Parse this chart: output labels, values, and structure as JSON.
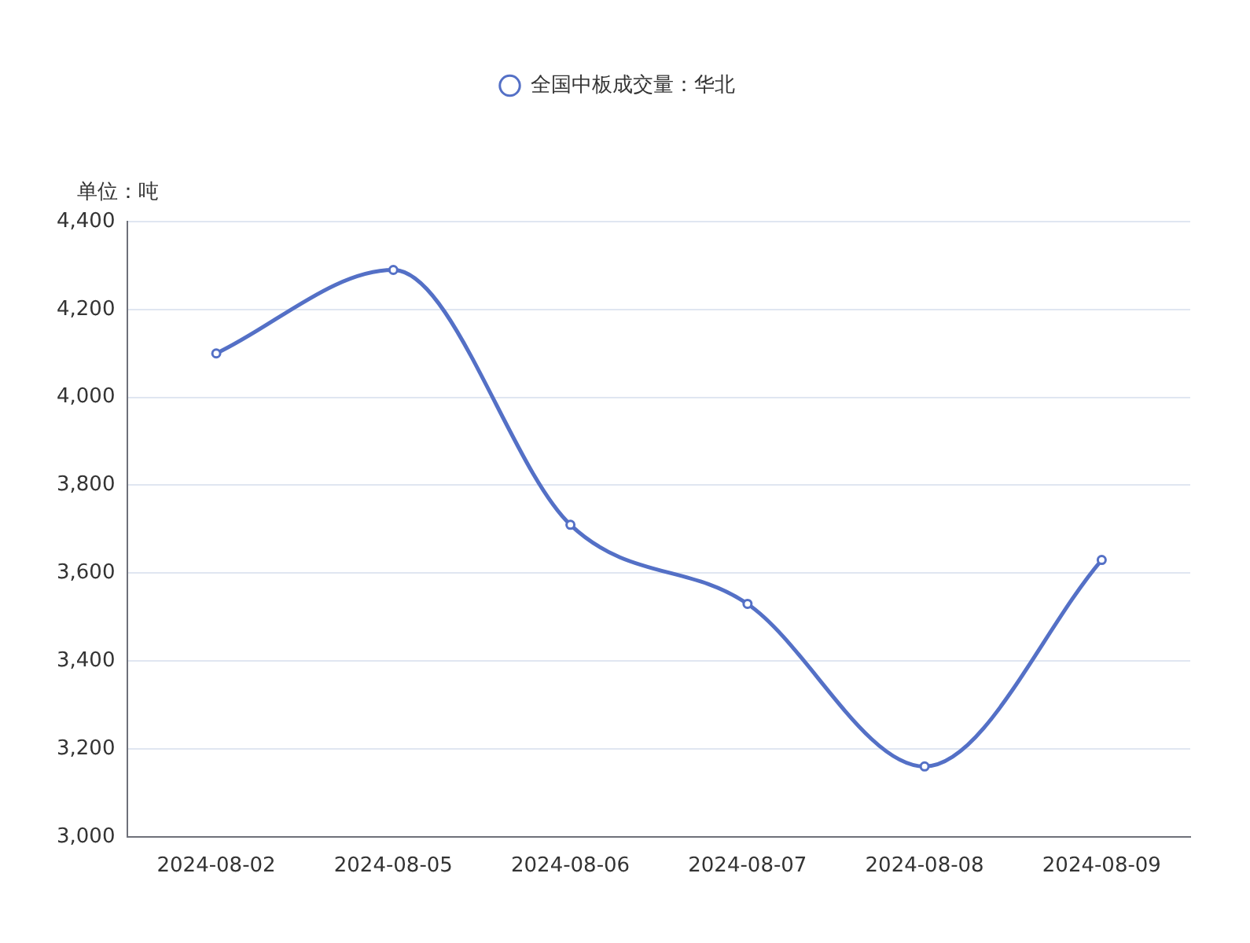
{
  "chart_data": {
    "type": "line",
    "ylabel": "单位：吨",
    "categories": [
      "2024-08-02",
      "2024-08-05",
      "2024-08-06",
      "2024-08-07",
      "2024-08-08",
      "2024-08-09"
    ],
    "series": [
      {
        "name": "全国中板成交量：华北",
        "color": "#5470c6",
        "values": [
          4100,
          4290,
          3710,
          3530,
          3160,
          3630
        ]
      }
    ],
    "ylim": [
      3000,
      4400
    ],
    "yticks": [
      {
        "value": 3000,
        "label": "3,000"
      },
      {
        "value": 3200,
        "label": "3,200"
      },
      {
        "value": 3400,
        "label": "3,400"
      },
      {
        "value": 3600,
        "label": "3,600"
      },
      {
        "value": 3800,
        "label": "3,800"
      },
      {
        "value": 4000,
        "label": "4,000"
      },
      {
        "value": 4200,
        "label": "4,200"
      },
      {
        "value": 4400,
        "label": "4,400"
      }
    ],
    "grid": "y",
    "legend": "top",
    "marker": "circle",
    "line_style": "solid"
  }
}
